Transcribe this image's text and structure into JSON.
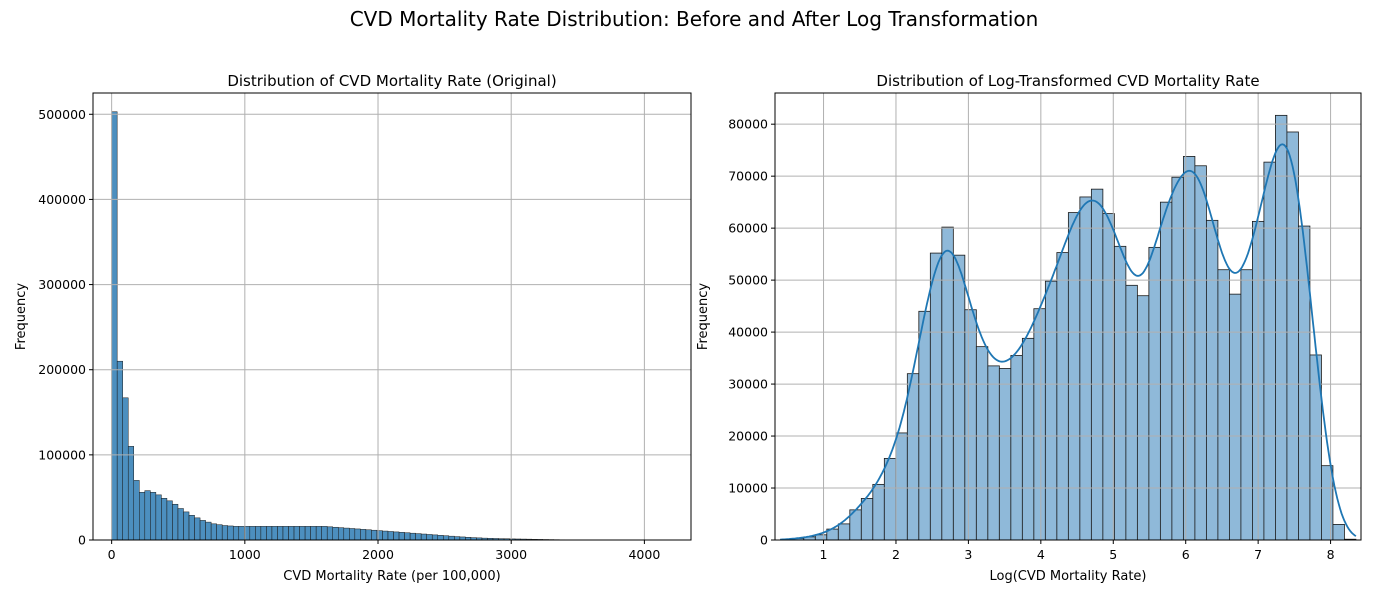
{
  "figure": {
    "suptitle": "CVD Mortality Rate Distribution: Before and After Log Transformation"
  },
  "chart_data": [
    {
      "type": "histogram",
      "title": "Distribution of CVD Mortality Rate (Original)",
      "xlabel": "CVD Mortality Rate (per 100,000)",
      "ylabel": "Frequency",
      "xlim": [
        -140,
        4350
      ],
      "ylim": [
        0,
        525000
      ],
      "xticks": [
        0,
        1000,
        2000,
        3000,
        4000
      ],
      "yticks": [
        0,
        100000,
        200000,
        300000,
        400000,
        500000
      ],
      "grid": true,
      "bar_color": "#4c8fbf",
      "bin_start": 0,
      "bin_width": 41.5,
      "values": [
        503000,
        210000,
        167000,
        110000,
        70000,
        56000,
        58000,
        56000,
        53000,
        49000,
        46000,
        42000,
        37000,
        33000,
        29000,
        26000,
        23000,
        21000,
        19000,
        18000,
        17000,
        16500,
        16000,
        16000,
        16000,
        16000,
        16000,
        16000,
        16000,
        16000,
        16000,
        16000,
        16000,
        16000,
        16000,
        16000,
        16000,
        16000,
        16000,
        15500,
        15000,
        14500,
        14000,
        13500,
        13000,
        12500,
        12000,
        11500,
        11000,
        10500,
        10000,
        9500,
        9000,
        8500,
        8000,
        7500,
        7000,
        6500,
        6000,
        5500,
        5000,
        4500,
        4000,
        3600,
        3200,
        2800,
        2500,
        2200,
        2000,
        1800,
        1600,
        1500,
        1300,
        1200,
        1100,
        1000,
        800,
        700,
        600,
        500,
        400,
        300,
        250,
        200,
        150,
        120,
        100,
        80,
        60,
        50,
        40,
        30,
        25,
        20,
        15,
        10,
        8,
        6,
        5,
        3
      ]
    },
    {
      "type": "histogram",
      "title": "Distribution of Log-Transformed CVD Mortality Rate",
      "xlabel": "Log(CVD Mortality Rate)",
      "ylabel": "Frequency",
      "xlim": [
        0.33,
        8.42
      ],
      "ylim": [
        0,
        86000
      ],
      "xticks": [
        1,
        2,
        3,
        4,
        5,
        6,
        7,
        8
      ],
      "yticks": [
        0,
        10000,
        20000,
        30000,
        40000,
        50000,
        60000,
        70000,
        80000
      ],
      "grid": true,
      "bar_color": "#8fb9d9",
      "kde": true,
      "kde_color": "#1f77b4",
      "bin_start": 0.41,
      "bin_width": 0.1588,
      "values": [
        100,
        300,
        600,
        1000,
        2100,
        3100,
        5800,
        8000,
        10700,
        15700,
        20600,
        32000,
        44000,
        55200,
        60200,
        54800,
        44300,
        37200,
        33500,
        33000,
        35500,
        38800,
        44500,
        49800,
        55300,
        63000,
        66000,
        67500,
        62800,
        56500,
        49000,
        47000,
        56300,
        65000,
        69800,
        73800,
        72000,
        61500,
        52000,
        47300,
        52000,
        61300,
        72700,
        81700,
        78500,
        60400,
        35600,
        14300,
        3000,
        150
      ]
    }
  ]
}
